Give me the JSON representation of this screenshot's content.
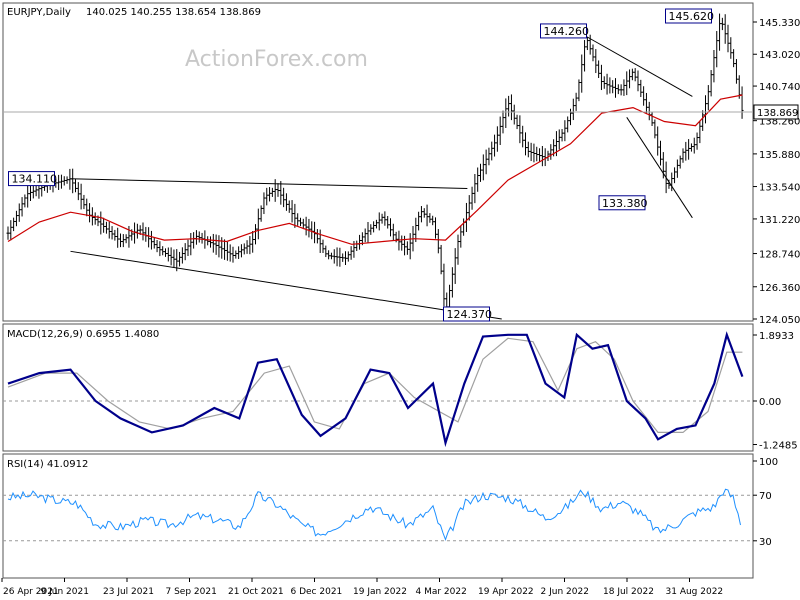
{
  "chart_data": {
    "type": "candlestick",
    "symbol_label": "EURJPY,Daily",
    "ohlc_readout": "140.025 140.255 138.654 138.869",
    "watermark": "ActionForex.com",
    "last_price_label": "138.869",
    "price_axis_ticks": [
      "145.330",
      "143.020",
      "140.740",
      "138.260",
      "135.880",
      "133.540",
      "131.220",
      "128.740",
      "126.360",
      "124.050"
    ],
    "price_axis_values": [
      145.33,
      143.02,
      140.74,
      138.26,
      135.88,
      133.54,
      131.22,
      128.74,
      126.36,
      124.05
    ],
    "x_axis_labels": [
      "26 Apr 2021",
      "9 Jun 2021",
      "23 Jul 2021",
      "7 Sep 2021",
      "21 Oct 2021",
      "6 Dec 2021",
      "19 Jan 2022",
      "4 Mar 2022",
      "19 Apr 2022",
      "2 Jun 2022",
      "18 Jul 2022",
      "31 Aug 2022"
    ],
    "annotations": [
      {
        "text": "134.110",
        "date_index": 1,
        "price": 134.11
      },
      {
        "text": "124.370",
        "date_index": 7,
        "price": 124.37
      },
      {
        "text": "144.260",
        "date_index": 9,
        "price": 144.26
      },
      {
        "text": "133.380",
        "date_index": 10,
        "price": 133.38
      },
      {
        "text": "145.620",
        "date_index": 11,
        "price": 145.62
      }
    ],
    "price_path": [
      [
        0,
        130.2
      ],
      [
        0.3,
        133.0
      ],
      [
        0.6,
        133.6
      ],
      [
        1.0,
        134.1
      ],
      [
        1.3,
        131.5
      ],
      [
        1.5,
        130.8
      ],
      [
        1.8,
        129.6
      ],
      [
        2.1,
        130.5
      ],
      [
        2.4,
        129.1
      ],
      [
        2.7,
        128.2
      ],
      [
        3.0,
        130.0
      ],
      [
        3.3,
        129.4
      ],
      [
        3.6,
        128.6
      ],
      [
        3.9,
        129.5
      ],
      [
        4.1,
        132.8
      ],
      [
        4.3,
        133.4
      ],
      [
        4.6,
        131.2
      ],
      [
        4.9,
        130.2
      ],
      [
        5.1,
        128.6
      ],
      [
        5.4,
        128.4
      ],
      [
        5.7,
        130.1
      ],
      [
        6.0,
        131.4
      ],
      [
        6.2,
        129.8
      ],
      [
        6.4,
        129.0
      ],
      [
        6.6,
        131.8
      ],
      [
        6.8,
        131.0
      ],
      [
        6.9,
        128.8
      ],
      [
        7.0,
        124.4
      ],
      [
        7.2,
        129.6
      ],
      [
        7.5,
        134.2
      ],
      [
        7.8,
        136.8
      ],
      [
        8.0,
        139.6
      ],
      [
        8.3,
        136.1
      ],
      [
        8.6,
        135.6
      ],
      [
        8.9,
        137.6
      ],
      [
        9.1,
        140.0
      ],
      [
        9.25,
        144.26
      ],
      [
        9.5,
        141.0
      ],
      [
        9.8,
        140.4
      ],
      [
        10.0,
        141.8
      ],
      [
        10.3,
        138.2
      ],
      [
        10.55,
        133.38
      ],
      [
        10.8,
        136.0
      ],
      [
        11.0,
        136.6
      ],
      [
        11.2,
        140.2
      ],
      [
        11.4,
        145.62
      ],
      [
        11.6,
        142.6
      ],
      [
        11.75,
        138.87
      ]
    ],
    "ma_path": [
      [
        0,
        129.6
      ],
      [
        0.5,
        131.0
      ],
      [
        1.0,
        131.7
      ],
      [
        1.5,
        131.3
      ],
      [
        2.0,
        130.3
      ],
      [
        2.5,
        129.7
      ],
      [
        3.0,
        129.8
      ],
      [
        3.5,
        129.6
      ],
      [
        4.0,
        130.4
      ],
      [
        4.5,
        130.9
      ],
      [
        5.0,
        130.1
      ],
      [
        5.5,
        129.4
      ],
      [
        6.0,
        129.6
      ],
      [
        6.5,
        129.8
      ],
      [
        7.0,
        129.7
      ],
      [
        7.5,
        131.8
      ],
      [
        8.0,
        134.0
      ],
      [
        8.5,
        135.3
      ],
      [
        9.0,
        136.6
      ],
      [
        9.5,
        138.8
      ],
      [
        10.0,
        139.2
      ],
      [
        10.5,
        138.2
      ],
      [
        11.0,
        137.9
      ],
      [
        11.4,
        139.8
      ],
      [
        11.75,
        140.1
      ]
    ],
    "macd": {
      "label": "MACD(12,26,9) 0.6955 1.4080",
      "ticks": [
        "1.8933",
        "0.00",
        "-1.2485"
      ],
      "tick_values": [
        1.8933,
        0,
        -1.2485
      ],
      "macd_path": [
        [
          0,
          0.5
        ],
        [
          0.5,
          0.8
        ],
        [
          1.0,
          0.9
        ],
        [
          1.4,
          0.0
        ],
        [
          1.8,
          -0.5
        ],
        [
          2.3,
          -0.9
        ],
        [
          2.8,
          -0.7
        ],
        [
          3.3,
          -0.2
        ],
        [
          3.7,
          -0.5
        ],
        [
          4.0,
          1.1
        ],
        [
          4.3,
          1.2
        ],
        [
          4.7,
          -0.4
        ],
        [
          5.0,
          -1.0
        ],
        [
          5.4,
          -0.5
        ],
        [
          5.8,
          0.9
        ],
        [
          6.1,
          0.8
        ],
        [
          6.4,
          -0.2
        ],
        [
          6.8,
          0.5
        ],
        [
          7.0,
          -1.2
        ],
        [
          7.3,
          0.5
        ],
        [
          7.6,
          1.85
        ],
        [
          8.0,
          1.9
        ],
        [
          8.3,
          1.9
        ],
        [
          8.6,
          0.5
        ],
        [
          8.9,
          0.1
        ],
        [
          9.1,
          1.9
        ],
        [
          9.35,
          1.5
        ],
        [
          9.6,
          1.6
        ],
        [
          9.9,
          0.0
        ],
        [
          10.2,
          -0.5
        ],
        [
          10.4,
          -1.1
        ],
        [
          10.7,
          -0.8
        ],
        [
          11.0,
          -0.7
        ],
        [
          11.3,
          0.5
        ],
        [
          11.5,
          1.9
        ],
        [
          11.75,
          0.7
        ]
      ],
      "signal_path": [
        [
          0,
          0.4
        ],
        [
          0.6,
          0.8
        ],
        [
          1.1,
          0.8
        ],
        [
          1.6,
          0.0
        ],
        [
          2.1,
          -0.6
        ],
        [
          2.6,
          -0.8
        ],
        [
          3.1,
          -0.5
        ],
        [
          3.6,
          -0.3
        ],
        [
          4.1,
          0.8
        ],
        [
          4.5,
          1.0
        ],
        [
          4.9,
          -0.6
        ],
        [
          5.3,
          -0.8
        ],
        [
          5.7,
          0.5
        ],
        [
          6.1,
          0.8
        ],
        [
          6.5,
          0.1
        ],
        [
          6.9,
          -0.3
        ],
        [
          7.2,
          -0.6
        ],
        [
          7.6,
          1.2
        ],
        [
          8.0,
          1.8
        ],
        [
          8.4,
          1.7
        ],
        [
          8.8,
          0.3
        ],
        [
          9.1,
          1.5
        ],
        [
          9.4,
          1.7
        ],
        [
          9.7,
          1.2
        ],
        [
          10.0,
          0.0
        ],
        [
          10.4,
          -0.9
        ],
        [
          10.8,
          -0.9
        ],
        [
          11.2,
          -0.3
        ],
        [
          11.5,
          1.4
        ],
        [
          11.75,
          1.4
        ]
      ]
    },
    "rsi": {
      "label": "RSI(14) 41.0912",
      "ticks": [
        "100",
        "70",
        "30",
        "0"
      ],
      "tick_values": [
        100,
        70,
        30,
        0
      ],
      "path": [
        [
          0,
          68
        ],
        [
          0.4,
          70
        ],
        [
          0.8,
          65
        ],
        [
          1.1,
          63
        ],
        [
          1.4,
          45
        ],
        [
          1.8,
          42
        ],
        [
          2.2,
          48
        ],
        [
          2.6,
          44
        ],
        [
          3.0,
          52
        ],
        [
          3.4,
          48
        ],
        [
          3.7,
          42
        ],
        [
          4.0,
          70
        ],
        [
          4.3,
          62
        ],
        [
          4.7,
          44
        ],
        [
          5.0,
          36
        ],
        [
          5.4,
          48
        ],
        [
          5.8,
          60
        ],
        [
          6.1,
          52
        ],
        [
          6.4,
          44
        ],
        [
          6.8,
          58
        ],
        [
          7.0,
          30
        ],
        [
          7.3,
          62
        ],
        [
          7.6,
          70
        ],
        [
          8.0,
          68
        ],
        [
          8.3,
          60
        ],
        [
          8.6,
          50
        ],
        [
          8.9,
          58
        ],
        [
          9.2,
          74
        ],
        [
          9.5,
          58
        ],
        [
          9.8,
          64
        ],
        [
          10.1,
          55
        ],
        [
          10.4,
          38
        ],
        [
          10.7,
          45
        ],
        [
          11.0,
          55
        ],
        [
          11.3,
          60
        ],
        [
          11.45,
          75
        ],
        [
          11.6,
          68
        ],
        [
          11.75,
          41
        ]
      ]
    },
    "colors": {
      "candles": "#000000",
      "ma": "#cc0000",
      "macd": "#00008b",
      "signal": "#a0a0a0",
      "rsi": "#1e90ff",
      "annotation_box": "#00008b"
    }
  }
}
